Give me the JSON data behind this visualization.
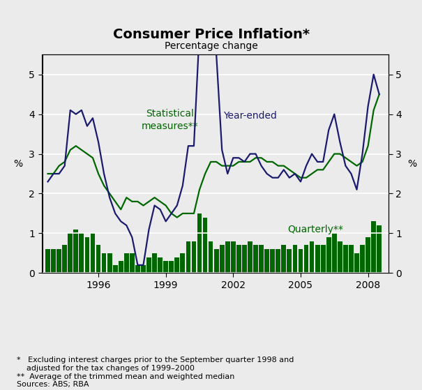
{
  "title": "Consumer Price Inflation*",
  "subtitle": "Percentage change",
  "ylabel_left": "%",
  "ylabel_right": "%",
  "background_color": "#ebebeb",
  "plot_background": "#ebebeb",
  "year_ended_color": "#1a1a6e",
  "statistical_color": "#006600",
  "quarterly_bar_color": "#006600",
  "yticks_line": [
    0,
    1,
    2,
    3,
    4,
    5
  ],
  "xticks": [
    1996,
    1999,
    2002,
    2005,
    2008
  ],
  "xlim": [
    1993.5,
    2008.9
  ],
  "quarter_years": [
    1993.75,
    1994.0,
    1994.25,
    1994.5,
    1994.75,
    1995.0,
    1995.25,
    1995.5,
    1995.75,
    1996.0,
    1996.25,
    1996.5,
    1996.75,
    1997.0,
    1997.25,
    1997.5,
    1997.75,
    1998.0,
    1998.25,
    1998.5,
    1998.75,
    1999.0,
    1999.25,
    1999.5,
    1999.75,
    2000.0,
    2000.25,
    2000.5,
    2000.75,
    2001.0,
    2001.25,
    2001.5,
    2001.75,
    2002.0,
    2002.25,
    2002.5,
    2002.75,
    2003.0,
    2003.25,
    2003.5,
    2003.75,
    2004.0,
    2004.25,
    2004.5,
    2004.75,
    2005.0,
    2005.25,
    2005.5,
    2005.75,
    2006.0,
    2006.25,
    2006.5,
    2006.75,
    2007.0,
    2007.25,
    2007.5,
    2007.75,
    2008.0,
    2008.25,
    2008.5
  ],
  "year_ended": [
    2.3,
    2.5,
    2.5,
    2.7,
    4.1,
    4.0,
    4.1,
    3.7,
    3.9,
    3.3,
    2.5,
    1.9,
    1.5,
    1.3,
    1.2,
    0.9,
    0.2,
    0.2,
    1.1,
    1.7,
    1.6,
    1.3,
    1.5,
    1.7,
    2.2,
    3.2,
    3.2,
    6.1,
    6.0,
    6.0,
    5.5,
    3.1,
    2.5,
    2.9,
    2.9,
    2.8,
    3.0,
    3.0,
    2.7,
    2.5,
    2.4,
    2.4,
    2.6,
    2.4,
    2.5,
    2.3,
    2.7,
    3.0,
    2.8,
    2.8,
    3.6,
    4.0,
    3.3,
    2.7,
    2.5,
    2.1,
    3.0,
    4.2,
    5.0,
    4.5
  ],
  "statistical_measures": [
    2.5,
    2.5,
    2.7,
    2.8,
    3.1,
    3.2,
    3.1,
    3.0,
    2.9,
    2.5,
    2.2,
    2.0,
    1.8,
    1.6,
    1.9,
    1.8,
    1.8,
    1.7,
    1.8,
    1.9,
    1.8,
    1.7,
    1.5,
    1.4,
    1.5,
    1.5,
    1.5,
    2.1,
    2.5,
    2.8,
    2.8,
    2.7,
    2.7,
    2.7,
    2.8,
    2.8,
    2.8,
    2.9,
    2.9,
    2.8,
    2.8,
    2.7,
    2.7,
    2.6,
    2.5,
    2.4,
    2.4,
    2.5,
    2.6,
    2.6,
    2.8,
    3.0,
    3.0,
    2.9,
    2.8,
    2.7,
    2.8,
    3.2,
    4.1,
    4.5
  ],
  "quarterly_bars": [
    0.6,
    0.6,
    0.6,
    0.7,
    1.0,
    1.1,
    1.0,
    0.9,
    1.0,
    0.7,
    0.5,
    0.5,
    0.2,
    0.3,
    0.5,
    0.5,
    0.2,
    0.2,
    0.4,
    0.5,
    0.4,
    0.3,
    0.3,
    0.4,
    0.5,
    0.8,
    0.8,
    1.5,
    1.4,
    0.8,
    0.6,
    0.7,
    0.8,
    0.8,
    0.7,
    0.7,
    0.8,
    0.7,
    0.7,
    0.6,
    0.6,
    0.6,
    0.7,
    0.6,
    0.7,
    0.6,
    0.7,
    0.8,
    0.7,
    0.7,
    0.9,
    1.0,
    0.8,
    0.7,
    0.7,
    0.5,
    0.7,
    0.9,
    1.3,
    1.2
  ]
}
